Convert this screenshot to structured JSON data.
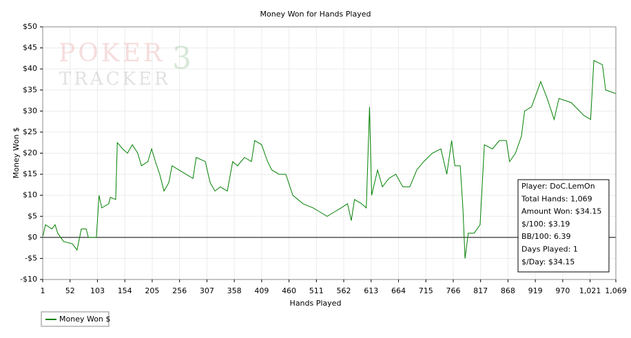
{
  "chart_data": {
    "type": "line",
    "title": "Money Won for Hands Played",
    "x_label": "Hands Played",
    "y_label": "Money Won $",
    "xlim": [
      1,
      1069
    ],
    "xticks": [
      1,
      52,
      103,
      154,
      205,
      256,
      307,
      358,
      409,
      460,
      511,
      562,
      613,
      664,
      715,
      766,
      817,
      868,
      919,
      970,
      {
        "value": 1021,
        "label": "1,021"
      },
      {
        "value": 1069,
        "label": "1,069"
      }
    ],
    "ylim": [
      -10,
      50
    ],
    "yticks": [
      {
        "value": -10,
        "label": "-$10"
      },
      {
        "value": -5,
        "label": "-$5"
      },
      {
        "value": 0,
        "label": "$0"
      },
      {
        "value": 5,
        "label": "$5"
      },
      {
        "value": 10,
        "label": "$10"
      },
      {
        "value": 15,
        "label": "$15"
      },
      {
        "value": 20,
        "label": "$20"
      },
      {
        "value": 25,
        "label": "$25"
      },
      {
        "value": 30,
        "label": "$30"
      },
      {
        "value": 35,
        "label": "$35"
      },
      {
        "value": 40,
        "label": "$40"
      },
      {
        "value": 45,
        "label": "$45"
      },
      {
        "value": 50,
        "label": "$50"
      }
    ],
    "grid": true,
    "x": [
      1,
      6,
      18,
      24,
      29,
      40,
      56,
      65,
      73,
      82,
      86,
      101,
      106,
      111,
      124,
      127,
      137,
      140,
      150,
      159,
      168,
      178,
      185,
      197,
      204,
      211,
      219,
      227,
      236,
      242,
      255,
      268,
      281,
      287,
      304,
      313,
      322,
      332,
      345,
      355,
      364,
      377,
      390,
      396,
      409,
      420,
      428,
      441,
      454,
      467,
      486,
      505,
      518,
      531,
      544,
      557,
      569,
      576,
      582,
      595,
      604,
      610,
      614,
      625,
      634,
      646,
      659,
      672,
      685,
      698,
      711,
      727,
      743,
      754,
      763,
      769,
      779,
      784,
      788,
      794,
      805,
      816,
      824,
      839,
      852,
      865,
      871,
      882,
      893,
      899,
      912,
      929,
      941,
      954,
      963,
      986,
      1009,
      1022,
      1028,
      1044,
      1050,
      1069
    ],
    "series": [
      {
        "name": "Money Won $",
        "color": "#008000",
        "values": [
          0,
          3,
          2,
          3,
          1,
          -1,
          -1.5,
          -3,
          2,
          2,
          0,
          0,
          10,
          7,
          8,
          9.5,
          9,
          22.5,
          21,
          20,
          22,
          20,
          17,
          18,
          21,
          18,
          15,
          11,
          13,
          17,
          16,
          15,
          14,
          19,
          18,
          13,
          11,
          12,
          11,
          18,
          17,
          19,
          18,
          23,
          22,
          18,
          16,
          15,
          15,
          10,
          8,
          7,
          6,
          5,
          6,
          7,
          8,
          4,
          9,
          8,
          7,
          31,
          10,
          16,
          12,
          14,
          15,
          12,
          12,
          16,
          18,
          20,
          21,
          15,
          23,
          17,
          17,
          7,
          -5,
          1,
          1,
          3,
          22,
          21,
          23,
          23,
          18,
          20,
          24,
          30,
          31,
          37,
          33,
          28,
          33,
          32,
          29,
          28,
          42,
          41,
          35,
          34.15
        ]
      }
    ],
    "watermark": [
      "POKER",
      "TRACKER",
      "3"
    ],
    "info_box": [
      "Player: DoC.LemOn",
      "Total Hands: 1,069",
      "Amount Won: $34.15",
      "$/100: $3.19",
      "BB/100: 6.39",
      "Days Played: 1",
      "$/Day: $34.15"
    ]
  }
}
